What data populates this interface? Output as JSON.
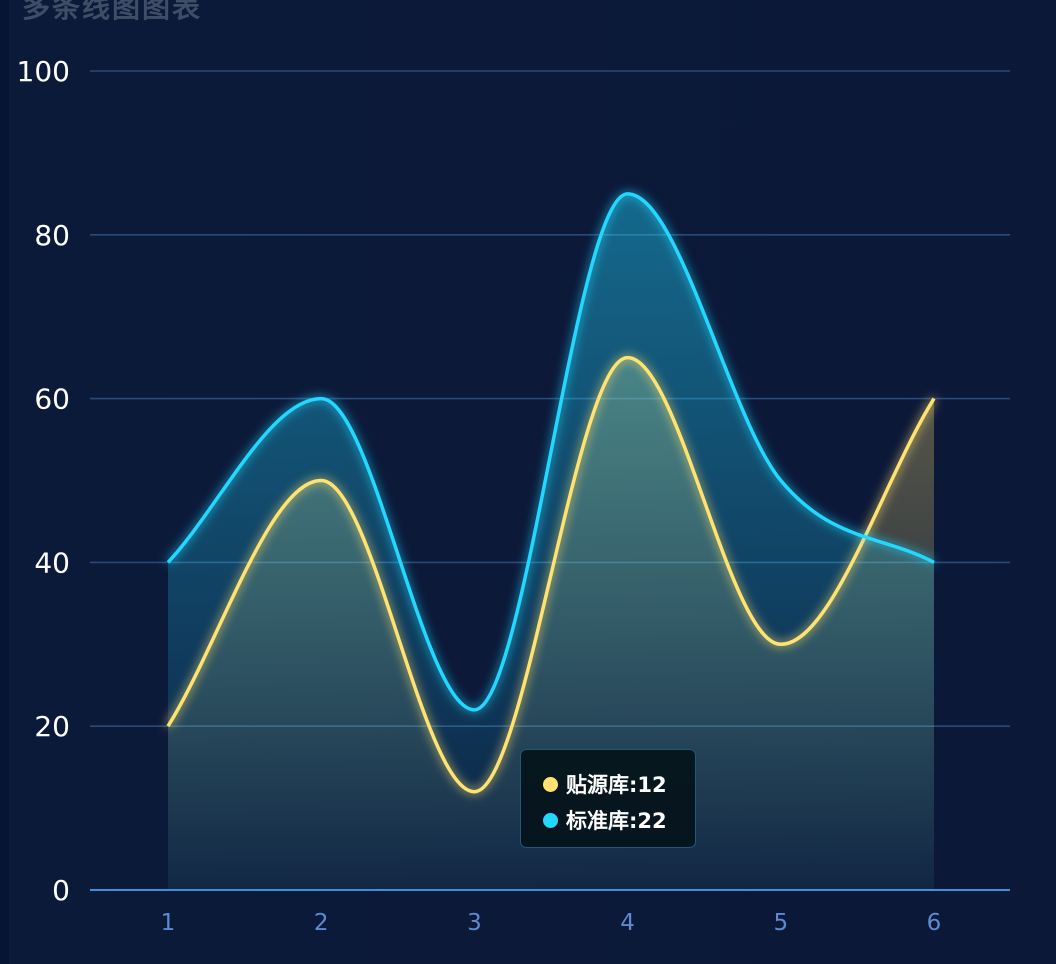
{
  "title": "多条线图图表",
  "chart_data": {
    "type": "area",
    "title": "多条线图图表",
    "xlabel": "",
    "ylabel": "",
    "categories": [
      "1",
      "2",
      "3",
      "4",
      "5",
      "6"
    ],
    "y_ticks": [
      "0",
      "20",
      "40",
      "60",
      "80",
      "100"
    ],
    "ylim": [
      0,
      100
    ],
    "grid": true,
    "smooth": true,
    "series": [
      {
        "name": "贴源库",
        "values": [
          20,
          50,
          12,
          65,
          30,
          60
        ],
        "color": "#ffe270"
      },
      {
        "name": "标准库",
        "values": [
          40,
          60,
          22,
          85,
          50,
          40
        ],
        "color": "#22d8ff"
      }
    ],
    "tooltip": {
      "category": "3",
      "rows": [
        {
          "label": "贴源库:12",
          "color": "#ffe270"
        },
        {
          "label": "标准库:22",
          "color": "#22d8ff"
        }
      ]
    }
  }
}
